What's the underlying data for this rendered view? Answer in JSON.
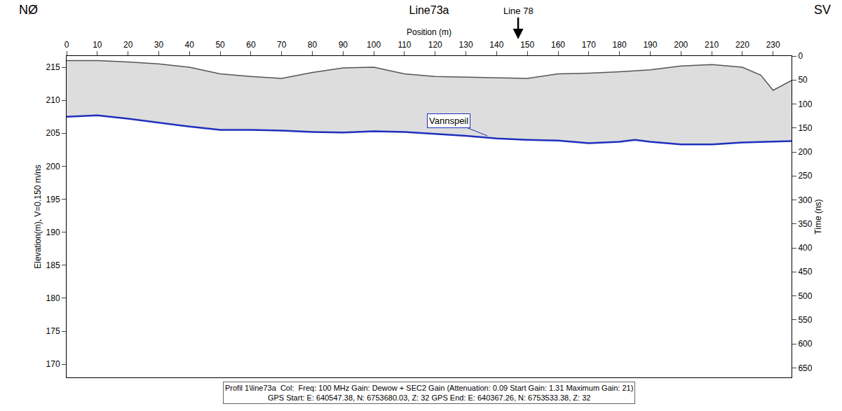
{
  "chart_data": {
    "type": "line",
    "title": "Line73a",
    "corner_labels": {
      "left": "NØ",
      "right": "SV"
    },
    "x_label": "Position (m)",
    "y_label": "Elevation(m), V=0.150 m/ns",
    "y2_label": "Time (ns)",
    "xlim": [
      0,
      236
    ],
    "xticks": [
      0,
      10,
      20,
      30,
      40,
      50,
      60,
      70,
      80,
      90,
      100,
      110,
      120,
      130,
      140,
      150,
      160,
      170,
      180,
      190,
      200,
      210,
      220,
      230
    ],
    "ylim": [
      168,
      216.7
    ],
    "yticks": [
      170,
      175,
      180,
      185,
      190,
      195,
      200,
      205,
      210,
      215
    ],
    "y2lim": [
      670,
      0
    ],
    "y2ticks": [
      0,
      50,
      100,
      150,
      200,
      250,
      300,
      350,
      400,
      450,
      500,
      550,
      600,
      650
    ],
    "series": [
      {
        "color": "#555555",
        "x": [
          0,
          10,
          20,
          30,
          40,
          50,
          60,
          70,
          80,
          90,
          100,
          110,
          120,
          130,
          140,
          150,
          160,
          170,
          180,
          190,
          200,
          210,
          220,
          226,
          230,
          236
        ],
        "values": [
          216.0,
          216.0,
          215.8,
          215.5,
          215.0,
          214.0,
          213.6,
          213.3,
          214.2,
          214.9,
          215.0,
          214.0,
          213.6,
          213.5,
          213.4,
          213.3,
          214.0,
          214.1,
          214.3,
          214.6,
          215.2,
          215.4,
          215.0,
          213.8,
          211.5,
          213.0
        ]
      },
      {
        "color": "#1f2fbf",
        "x": [
          0,
          10,
          20,
          40,
          50,
          60,
          70,
          80,
          90,
          100,
          110,
          130,
          140,
          150,
          160,
          170,
          180,
          185,
          190,
          200,
          210,
          220,
          236
        ],
        "values": [
          207.5,
          207.7,
          207.2,
          206.0,
          205.5,
          205.5,
          205.4,
          205.2,
          205.1,
          205.3,
          205.2,
          204.6,
          204.2,
          204.0,
          203.9,
          203.5,
          203.7,
          204.0,
          203.7,
          203.3,
          203.3,
          203.6,
          203.8
        ]
      }
    ],
    "annotations": [
      {
        "text": "Line 78",
        "x": 147
      },
      {
        "text": "Vannspeil",
        "x": 137,
        "y": 204.6
      }
    ],
    "footer": [
      "Profil 1\\line73a  Col:  Freq: 100 MHz Gain: Dewow + SEC2 Gain (Attenuation: 0.09 Start Gain: 1.31 Maximum Gain: 21)",
      "GPS Start: E: 640547.38, N: 6753680.03, Z: 32 GPS End: E: 640367.26, N: 6753533.38, Z: 32"
    ]
  }
}
